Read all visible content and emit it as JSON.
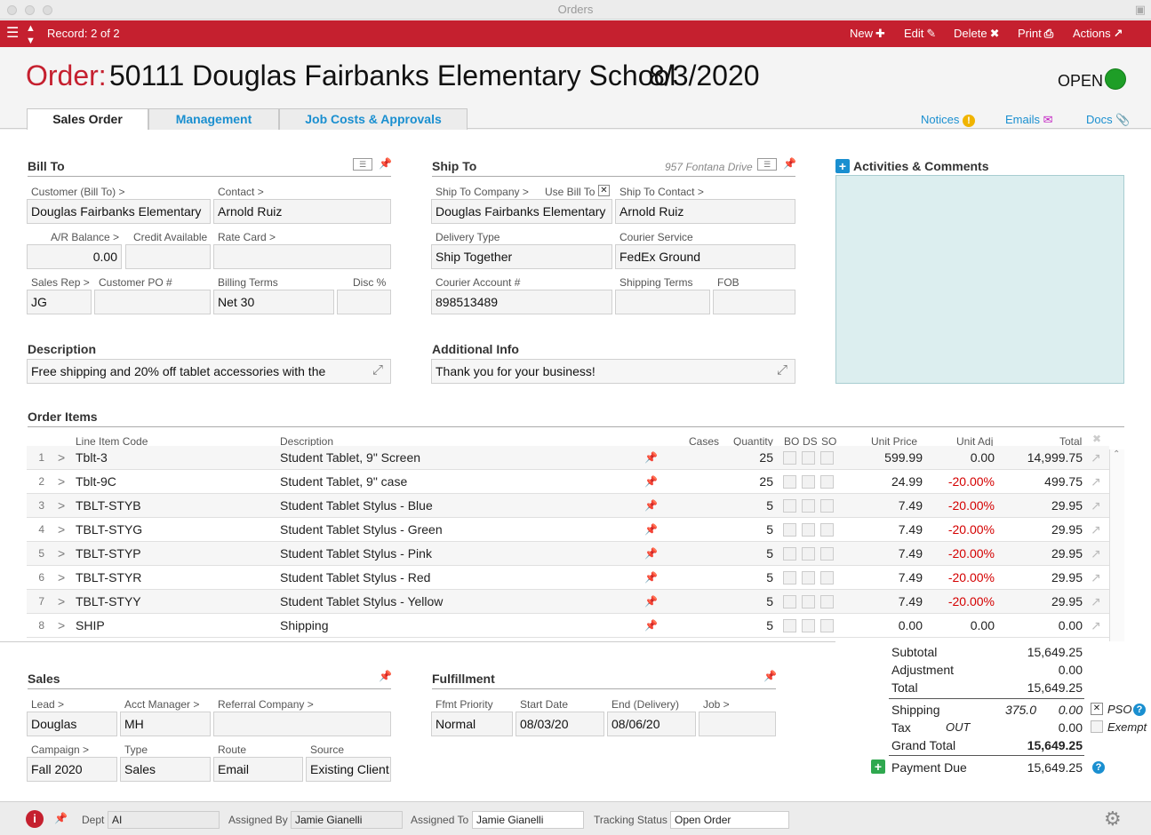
{
  "window": {
    "title": "Orders"
  },
  "toolbar": {
    "record": "Record: 2 of 2",
    "new": "New",
    "edit": "Edit",
    "delete": "Delete",
    "print": "Print",
    "actions": "Actions"
  },
  "header": {
    "order_label": "Order:",
    "order_title": "50111 Douglas Fairbanks Elementary School",
    "order_date": "8/3/2020",
    "status": "OPEN",
    "status_color": "#1e9e27"
  },
  "tabs": [
    "Sales Order",
    "Management",
    "Job Costs & Approvals"
  ],
  "links": {
    "notices": "Notices",
    "emails": "Emails",
    "docs": "Docs"
  },
  "bill_to": {
    "title": "Bill To",
    "customer_label": "Customer (Bill To) >",
    "customer": "Douglas Fairbanks Elementary",
    "contact_label": "Contact >",
    "contact": "Arnold Ruiz",
    "ar_label": "A/R Balance >",
    "ar_balance": "0.00",
    "credit_label": "Credit Available",
    "credit": "",
    "rate_label": "Rate Card >",
    "rate": "",
    "salesrep_label": "Sales Rep >",
    "salesrep": "JG",
    "po_label": "Customer PO #",
    "po": "",
    "terms_label": "Billing Terms",
    "terms": "Net 30",
    "disc_label": "Disc %",
    "disc": ""
  },
  "ship_to": {
    "title": "Ship To",
    "address_hint": "957 Fontana Drive",
    "company_label": "Ship To Company >",
    "use_bill_label": "Use Bill To",
    "company": "Douglas Fairbanks Elementary",
    "contact_label": "Ship To Contact >",
    "contact": "Arnold Ruiz",
    "delivery_label": "Delivery Type",
    "delivery": "Ship Together",
    "courier_label": "Courier Service",
    "courier": "FedEx Ground",
    "account_label": "Courier Account #",
    "account": "898513489",
    "shipping_terms_label": "Shipping Terms",
    "shipping_terms": "",
    "fob_label": "FOB",
    "fob": ""
  },
  "activities": {
    "title": "Activities & Comments"
  },
  "description": {
    "title": "Description",
    "value": "Free shipping and 20% off tablet accessories with the"
  },
  "additional": {
    "title": "Additional Info",
    "value": "Thank you for your business!"
  },
  "order_items": {
    "title": "Order Items",
    "headers": {
      "code": "Line Item Code",
      "description": "Description",
      "cases": "Cases",
      "quantity": "Quantity",
      "bo": "BO",
      "ds": "DS",
      "so": "SO",
      "unit_price": "Unit Price",
      "unit_adj": "Unit Adj",
      "total": "Total"
    },
    "rows": [
      {
        "n": "1",
        "code": "Tblt-3",
        "desc": "Student Tablet, 9\" Screen",
        "qty": "25",
        "price": "599.99",
        "adj": "0.00",
        "total": "14,999.75"
      },
      {
        "n": "2",
        "code": "Tblt-9C",
        "desc": "Student Tablet, 9\" case",
        "qty": "25",
        "price": "24.99",
        "adj": "-20.00%",
        "total": "499.75"
      },
      {
        "n": "3",
        "code": "TBLT-STYB",
        "desc": "Student Tablet Stylus - Blue",
        "qty": "5",
        "price": "7.49",
        "adj": "-20.00%",
        "total": "29.95"
      },
      {
        "n": "4",
        "code": "TBLT-STYG",
        "desc": "Student Tablet Stylus - Green",
        "qty": "5",
        "price": "7.49",
        "adj": "-20.00%",
        "total": "29.95"
      },
      {
        "n": "5",
        "code": "TBLT-STYP",
        "desc": "Student Tablet Stylus - Pink",
        "qty": "5",
        "price": "7.49",
        "adj": "-20.00%",
        "total": "29.95"
      },
      {
        "n": "6",
        "code": "TBLT-STYR",
        "desc": "Student Tablet Stylus - Red",
        "qty": "5",
        "price": "7.49",
        "adj": "-20.00%",
        "total": "29.95"
      },
      {
        "n": "7",
        "code": "TBLT-STYY",
        "desc": "Student Tablet Stylus - Yellow",
        "qty": "5",
        "price": "7.49",
        "adj": "-20.00%",
        "total": "29.95"
      },
      {
        "n": "8",
        "code": "SHIP",
        "desc": "Shipping",
        "qty": "5",
        "price": "0.00",
        "adj": "0.00",
        "total": "0.00"
      }
    ]
  },
  "totals": {
    "subtotal_label": "Subtotal",
    "subtotal": "15,649.25",
    "adjustment_label": "Adjustment",
    "adjustment": "0.00",
    "total_label": "Total",
    "total": "15,649.25",
    "shipping_label": "Shipping",
    "shipping_est": "375.0",
    "shipping": "0.00",
    "pso_label": "PSO",
    "tax_label": "Tax",
    "tax_code": "OUT",
    "tax": "0.00",
    "exempt_label": "Exempt",
    "grand_label": "Grand Total",
    "grand": "15,649.25",
    "payment_label": "Payment Due",
    "payment": "15,649.25"
  },
  "sales": {
    "title": "Sales",
    "lead_label": "Lead >",
    "lead": "Douglas",
    "acct_label": "Acct Manager >",
    "acct": "MH",
    "referral_label": "Referral Company >",
    "referral": "",
    "campaign_label": "Campaign >",
    "campaign": "Fall 2020",
    "type_label": "Type",
    "type": "Sales",
    "route_label": "Route",
    "route": "Email",
    "source_label": "Source",
    "source": "Existing Client"
  },
  "fulfillment": {
    "title": "Fulfillment",
    "priority_label": "Ffmt Priority",
    "priority": "Normal",
    "start_label": "Start Date",
    "start": "08/03/20",
    "end_label": "End (Delivery)",
    "end": "08/06/20",
    "job_label": "Job >",
    "job": ""
  },
  "footer": {
    "dept_label": "Dept",
    "dept": "AI",
    "assigned_by_label": "Assigned By",
    "assigned_by": "Jamie Gianelli",
    "assigned_to_label": "Assigned To",
    "assigned_to": "Jamie Gianelli",
    "tracking_label": "Tracking Status",
    "tracking": "Open Order"
  }
}
